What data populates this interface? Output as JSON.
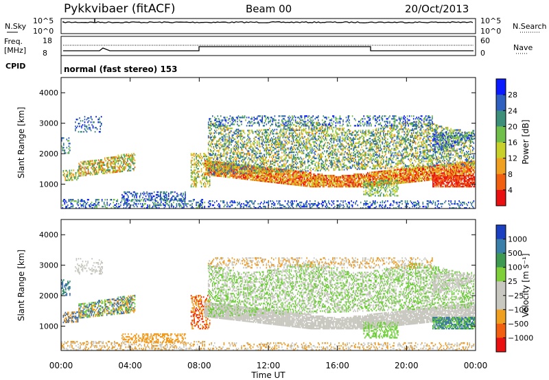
{
  "header": {
    "title": "Pykkvibaer (fitACF)",
    "beam": "Beam 00",
    "date": "20/Oct/2013"
  },
  "top_panels": {
    "nsky": {
      "label": "N.Sky",
      "tick_high": "10^5",
      "tick_low": "10^0"
    },
    "nsearch": {
      "label": "N.Search",
      "tick_high": "10^5",
      "tick_low": "10^0"
    },
    "freq": {
      "label_line1": "Freq.",
      "label_line2": "[MHz]",
      "tick_high": "18",
      "tick_low": "8"
    },
    "nave": {
      "label": "Nave",
      "tick_high": "60",
      "tick_low": "0"
    },
    "cpid": {
      "label": "CPID",
      "value": "normal (fast stereo) 153"
    }
  },
  "chart_data": [
    {
      "type": "heatmap",
      "name": "power",
      "xlabel": "",
      "ylabel": "Slant Range [km]",
      "xlim": [
        0,
        24
      ],
      "ylim": [
        200,
        4500
      ],
      "y_ticks": [
        "1000",
        "2000",
        "3000",
        "4000"
      ],
      "colorbar": {
        "label": "Power [dB]",
        "ticks": [
          "4",
          "8",
          "12",
          "16",
          "20",
          "24",
          "28"
        ],
        "colors": [
          "#0a1cff",
          "#2f5fbf",
          "#3d8f7a",
          "#6fbf4a",
          "#c8d12a",
          "#f0a020",
          "#f06010",
          "#e81010"
        ]
      }
    },
    {
      "type": "heatmap",
      "name": "velocity",
      "xlabel": "Time UT",
      "ylabel": "Slant Range [km]",
      "xlim": [
        0,
        24
      ],
      "ylim": [
        200,
        4500
      ],
      "x_ticks": [
        "00:00",
        "04:00",
        "08:00",
        "12:00",
        "16:00",
        "20:00",
        "00:00"
      ],
      "y_ticks": [
        "1000",
        "2000",
        "3000",
        "4000"
      ],
      "colorbar": {
        "label": "Velocity [m s⁻¹]",
        "ticks": [
          "1000",
          "500",
          "100",
          "25",
          "−25",
          "−100",
          "−500",
          "−1000"
        ],
        "colors": [
          "#1a3fbf",
          "#3a7faa",
          "#3d9a50",
          "#7fcf3a",
          "#c8c8c0",
          "#c8c8c0",
          "#f0a020",
          "#f06010",
          "#e81010"
        ]
      }
    }
  ]
}
